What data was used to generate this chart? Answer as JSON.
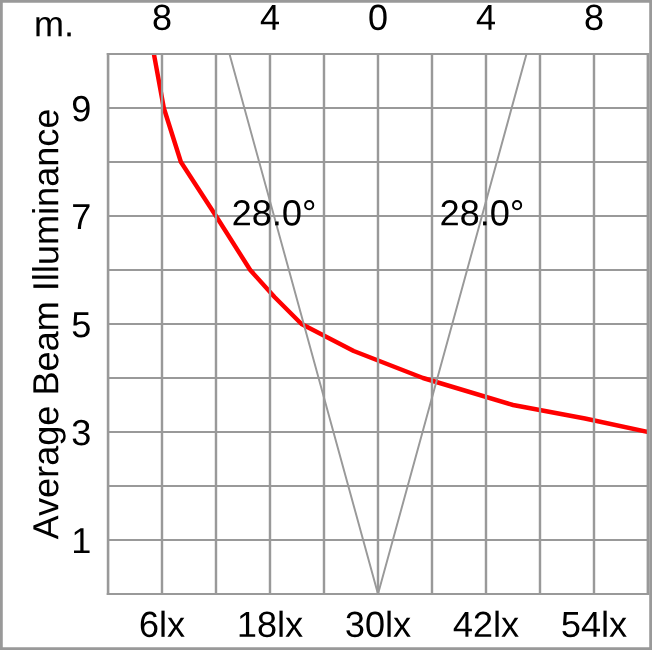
{
  "chart_data": {
    "type": "line",
    "ylabel": "Average Beam Illuminance",
    "x2label": "m.",
    "xlim": [
      0,
      60
    ],
    "xticks": [
      {
        "value": 0,
        "label": null
      },
      {
        "value": 6,
        "label": "6lx"
      },
      {
        "value": 12,
        "label": null
      },
      {
        "value": 18,
        "label": "18lx"
      },
      {
        "value": 24,
        "label": null
      },
      {
        "value": 30,
        "label": "30lx"
      },
      {
        "value": 36,
        "label": null
      },
      {
        "value": 42,
        "label": "42lx"
      },
      {
        "value": 48,
        "label": null
      },
      {
        "value": 54,
        "label": "54lx"
      },
      {
        "value": 60,
        "label": null
      }
    ],
    "x2lim": [
      -10,
      10
    ],
    "x2ticks": [
      {
        "value": -10,
        "label": null
      },
      {
        "value": -8,
        "label": "8"
      },
      {
        "value": -6,
        "label": null
      },
      {
        "value": -4,
        "label": "4"
      },
      {
        "value": -2,
        "label": null
      },
      0,
      {
        "value": 2,
        "label": null
      },
      {
        "value": 4,
        "label": "4"
      },
      {
        "value": 6,
        "label": null
      },
      {
        "value": 8,
        "label": "8"
      },
      {
        "value": 10,
        "label": null
      }
    ],
    "ylim": [
      0,
      10
    ],
    "yticks": [
      {
        "value": 0,
        "label": null
      },
      1,
      {
        "value": 2,
        "label": null
      },
      3,
      {
        "value": 4,
        "label": null
      },
      5,
      {
        "value": 6,
        "label": null
      },
      7,
      {
        "value": 8,
        "label": null
      },
      9,
      {
        "value": 10,
        "label": null
      }
    ],
    "grid": true,
    "series": [
      {
        "color": "#ff0000",
        "x": [
          5.1,
          6.2,
          8.1,
          12,
          15.8,
          18.5,
          21.5,
          27.3,
          35,
          45,
          53,
          60
        ],
        "values": [
          10,
          9,
          8,
          7,
          6,
          5.5,
          5,
          4.5,
          4,
          3.5,
          3.25,
          3
        ]
      },
      {
        "color": "#999999",
        "axis": "x2",
        "x": [
          -5.5,
          0,
          5.5
        ],
        "values": [
          10,
          0,
          10
        ]
      }
    ],
    "annotations": [
      "28.0°",
      "28.0°"
    ]
  }
}
